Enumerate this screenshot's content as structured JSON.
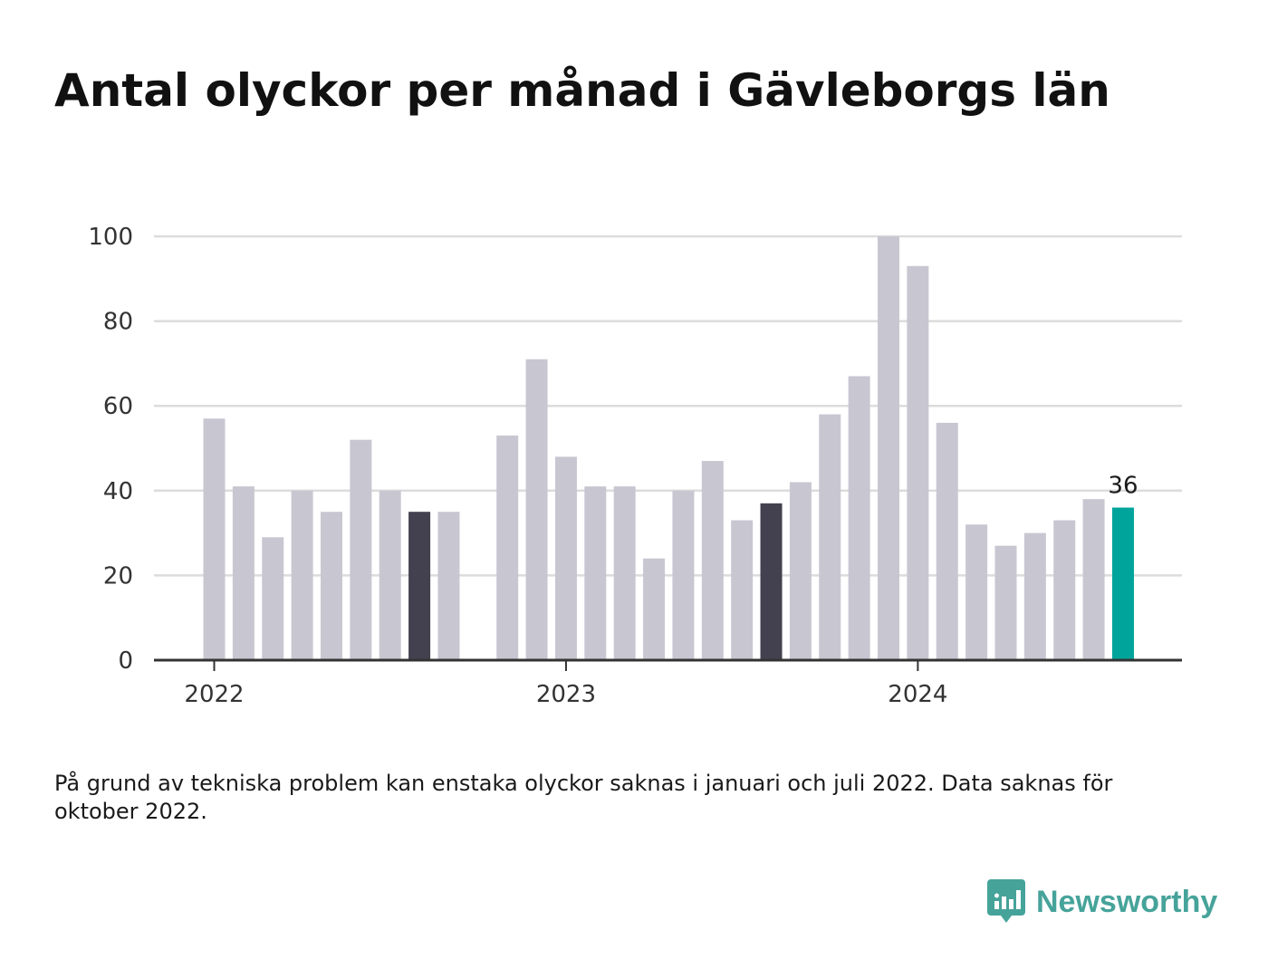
{
  "title": "Antal olyckor per månad i Gävleborgs län",
  "note": "På grund av tekniska problem kan enstaka olyckor saknas i januari och juli 2022. Data saknas för oktober 2022.",
  "logo": {
    "text": "Newsworthy",
    "icon": "bar-chart-bubble-icon",
    "color": "#46a39a"
  },
  "colors": {
    "bar_default": "#c8c7d1",
    "bar_highlight": "#43414f",
    "bar_latest": "#00a49b",
    "grid": "#dcdcdc",
    "axis": "#333333"
  },
  "chart_data": {
    "type": "bar",
    "title": "Antal olyckor per månad i Gävleborgs län",
    "xlabel": "",
    "ylabel": "",
    "ylim": [
      0,
      100
    ],
    "yticks": [
      0,
      20,
      40,
      60,
      80,
      100
    ],
    "grid": true,
    "xticks": [
      {
        "label": "2022",
        "at": "2022-01"
      },
      {
        "label": "2023",
        "at": "2023-01"
      },
      {
        "label": "2024",
        "at": "2024-01"
      }
    ],
    "categories": [
      "2022-01",
      "2022-02",
      "2022-03",
      "2022-04",
      "2022-05",
      "2022-06",
      "2022-07",
      "2022-08",
      "2022-09",
      "2022-10",
      "2022-11",
      "2022-12",
      "2023-01",
      "2023-02",
      "2023-03",
      "2023-04",
      "2023-05",
      "2023-06",
      "2023-07",
      "2023-08",
      "2023-09",
      "2023-10",
      "2023-11",
      "2023-12",
      "2024-01",
      "2024-02",
      "2024-03",
      "2024-04",
      "2024-05",
      "2024-06",
      "2024-07",
      "2024-08"
    ],
    "values": [
      57,
      41,
      29,
      40,
      35,
      52,
      40,
      35,
      35,
      null,
      53,
      71,
      48,
      41,
      41,
      24,
      40,
      47,
      33,
      37,
      42,
      58,
      67,
      100,
      93,
      56,
      32,
      27,
      30,
      33,
      38,
      36
    ],
    "highlighted": [
      "2022-08",
      "2023-08"
    ],
    "latest": "2024-08",
    "data_labels": [
      {
        "category": "2024-08",
        "text": "36"
      }
    ]
  }
}
